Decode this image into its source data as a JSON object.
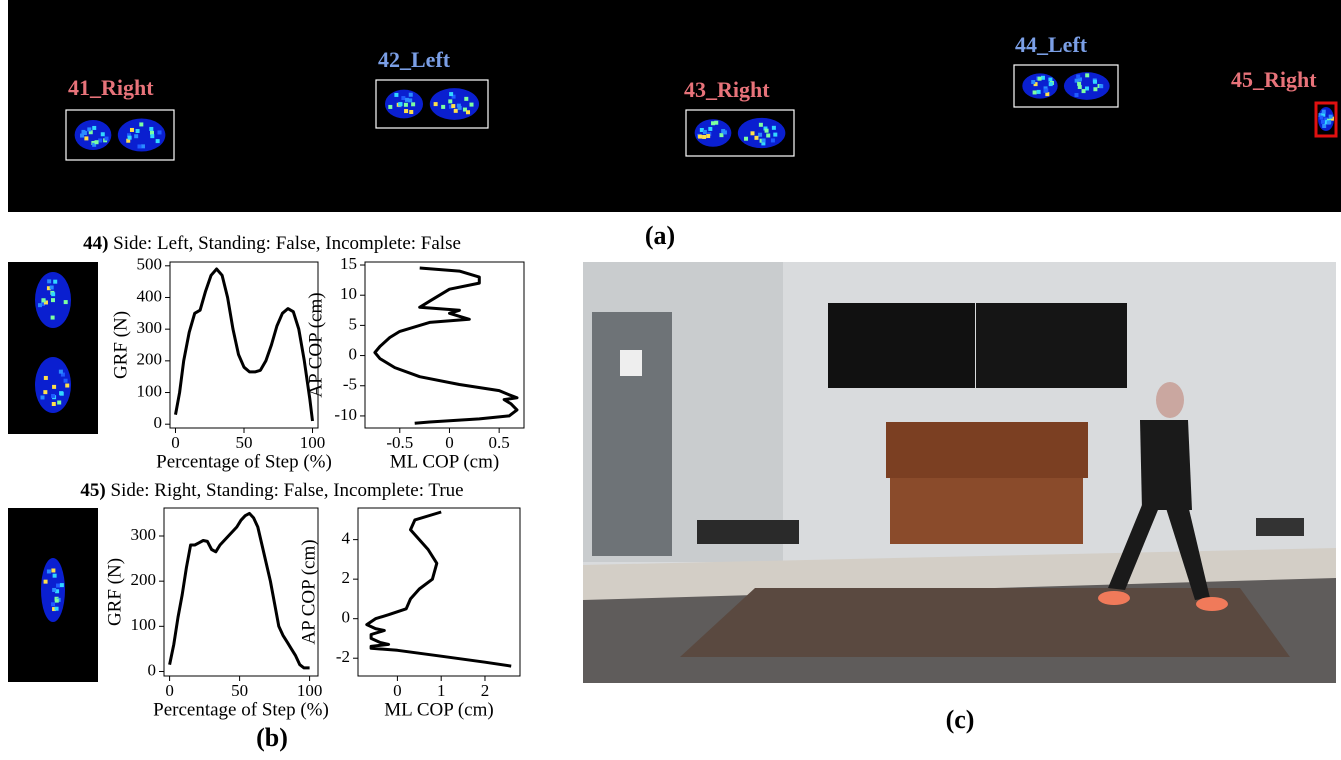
{
  "pressure_mat": {
    "steps": [
      {
        "label": "41_Right",
        "color": "#e8737a"
      },
      {
        "label": "42_Left",
        "color": "#7b9fe6"
      },
      {
        "label": "43_Right",
        "color": "#e8737a"
      },
      {
        "label": "44_Left",
        "color": "#7b9fe6"
      },
      {
        "label": "45_Right",
        "color": "#e8737a"
      }
    ],
    "panel_label": "(a)"
  },
  "panel_b": {
    "rows": [
      {
        "id": "44)",
        "caption": "Side: Left, Standing: False, Incomplete: False"
      },
      {
        "id": "45)",
        "caption": "Side: Right, Standing: False, Incomplete: True"
      }
    ],
    "panel_label": "(b)"
  },
  "panel_c": {
    "panel_label": "(c)"
  },
  "chart_data": [
    {
      "type": "line",
      "color": "#000000",
      "xlabel": "Percentage of Step (%)",
      "ylabel": "GRF (N)",
      "xlim": [
        -4,
        104
      ],
      "ylim": [
        -12,
        512
      ],
      "xticks": [
        0,
        50,
        100
      ],
      "yticks": [
        0,
        100,
        200,
        300,
        400,
        500
      ],
      "x": [
        0,
        3,
        6,
        10,
        14,
        18,
        22,
        26,
        30,
        34,
        38,
        42,
        46,
        50,
        54,
        58,
        62,
        66,
        70,
        74,
        78,
        82,
        86,
        90,
        94,
        98,
        100
      ],
      "values": [
        30,
        100,
        200,
        290,
        350,
        360,
        420,
        470,
        490,
        470,
        400,
        300,
        220,
        180,
        165,
        165,
        170,
        200,
        250,
        310,
        350,
        365,
        355,
        300,
        200,
        80,
        10
      ]
    },
    {
      "type": "line",
      "color": "#000000",
      "xlabel": "ML COP (cm)",
      "ylabel": "AP COP (cm)",
      "xlim": [
        -0.85,
        0.75
      ],
      "ylim": [
        -12,
        15.5
      ],
      "xticks": [
        -0.5,
        0,
        0.5
      ],
      "yticks": [
        -10,
        -5,
        0,
        5,
        10,
        15
      ],
      "x": [
        -0.3,
        0.1,
        0.3,
        0.3,
        0.0,
        -0.2,
        -0.3,
        0.1,
        0.0,
        0.2,
        -0.2,
        -0.5,
        -0.6,
        -0.7,
        -0.75,
        -0.7,
        -0.55,
        -0.3,
        0.1,
        0.5,
        0.6,
        0.68,
        0.55,
        0.62,
        0.68,
        0.6,
        0.3,
        -0.2,
        -0.35
      ],
      "values": [
        14.5,
        14,
        13,
        12,
        11,
        9,
        8,
        7.5,
        7,
        6,
        5.5,
        4,
        3,
        1.5,
        0.5,
        -0.5,
        -2,
        -3.5,
        -4.8,
        -5.8,
        -6.5,
        -7,
        -7.3,
        -8,
        -9,
        -10,
        -10.5,
        -11,
        -11.2
      ]
    },
    {
      "type": "line",
      "color": "#000000",
      "xlabel": "Percentage of Step (%)",
      "ylabel": "GRF (N)",
      "xlim": [
        -4,
        106
      ],
      "ylim": [
        -10,
        362
      ],
      "xticks": [
        0,
        50,
        100
      ],
      "yticks": [
        0,
        100,
        200,
        300
      ],
      "x": [
        0,
        3,
        6,
        9,
        12,
        15,
        18,
        21,
        24,
        27,
        30,
        33,
        36,
        39,
        42,
        45,
        48,
        51,
        54,
        57,
        60,
        63,
        66,
        69,
        72,
        75,
        78,
        81,
        84,
        87,
        90,
        93,
        96,
        100
      ],
      "values": [
        15,
        60,
        120,
        170,
        230,
        280,
        280,
        285,
        290,
        288,
        270,
        265,
        280,
        290,
        300,
        310,
        320,
        335,
        345,
        350,
        340,
        320,
        280,
        240,
        200,
        150,
        100,
        80,
        65,
        50,
        35,
        15,
        8,
        8
      ]
    },
    {
      "type": "line",
      "color": "#000000",
      "xlabel": "ML COP (cm)",
      "ylabel": "AP COP (cm)",
      "xlim": [
        -0.9,
        2.8
      ],
      "ylim": [
        -2.9,
        5.6
      ],
      "xticks": [
        0,
        1,
        2
      ],
      "yticks": [
        -2,
        0,
        2,
        4
      ],
      "x": [
        1.0,
        0.4,
        0.3,
        0.5,
        0.7,
        0.9,
        0.8,
        0.5,
        0.3,
        0.2,
        -0.2,
        -0.5,
        -0.7,
        -0.5,
        -0.3,
        -0.6,
        -0.6,
        -0.4,
        -0.2,
        -0.6,
        -0.6,
        0.0,
        1.0,
        2.0,
        2.6
      ],
      "values": [
        5.4,
        5,
        4.5,
        4,
        3.5,
        2.8,
        2,
        1.5,
        1,
        0.5,
        0.2,
        0,
        -0.3,
        -0.5,
        -0.6,
        -0.8,
        -1,
        -1.2,
        -1.3,
        -1.4,
        -1.5,
        -1.6,
        -1.9,
        -2.2,
        -2.4
      ]
    }
  ]
}
